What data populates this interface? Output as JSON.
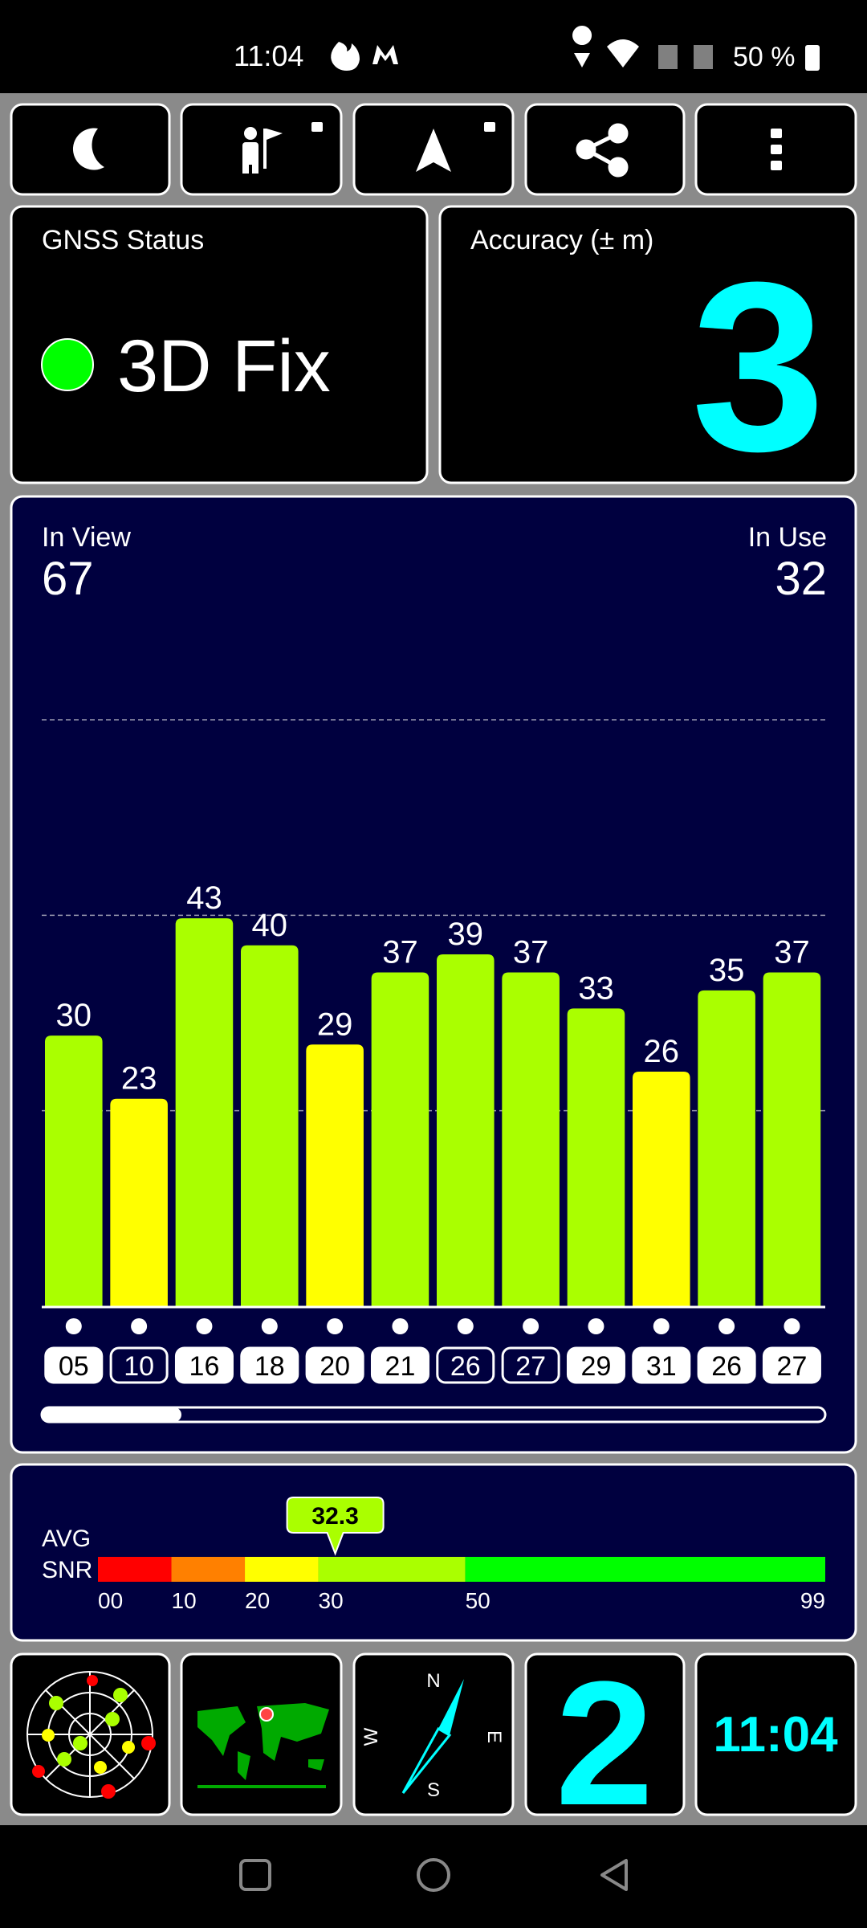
{
  "status_bar": {
    "time": "11:04",
    "battery": "50 %"
  },
  "gnss_status": {
    "title": "GNSS Status",
    "value": "3D Fix"
  },
  "accuracy": {
    "title": "Accuracy (± m)",
    "value": "3"
  },
  "chart_data": {
    "type": "bar",
    "in_view_label": "In View",
    "in_view": 67,
    "in_use_label": "In Use",
    "in_use": 32,
    "categories": [
      "05",
      "10",
      "16",
      "18",
      "20",
      "21",
      "26",
      "27",
      "29",
      "31",
      "26",
      "27"
    ],
    "used": [
      true,
      false,
      true,
      true,
      true,
      true,
      false,
      false,
      true,
      true,
      true,
      true
    ],
    "values": [
      30,
      23,
      43,
      40,
      29,
      37,
      39,
      37,
      33,
      26,
      35,
      37
    ],
    "colors": [
      "#aaff00",
      "#ffff00",
      "#aaff00",
      "#aaff00",
      "#ffff00",
      "#aaff00",
      "#aaff00",
      "#aaff00",
      "#aaff00",
      "#ffff00",
      "#aaff00",
      "#aaff00"
    ],
    "ylim": [
      0,
      65
    ],
    "grid": true
  },
  "snr": {
    "label_line1": "AVG",
    "label_line2": "SNR",
    "average": 32.3,
    "xlim": [
      0,
      99
    ],
    "xticks": [
      {
        "value": 0,
        "label": "00"
      },
      10,
      20,
      30,
      50,
      99
    ],
    "segment_colors": [
      "#ff0000",
      "#ff8000",
      "#ffff00",
      "#aaff00",
      "#00ff00"
    ]
  },
  "tiles": {
    "compass": {
      "n": "N",
      "e": "E",
      "s": "S",
      "w": "W"
    },
    "count": "2",
    "clock": "11:04"
  }
}
